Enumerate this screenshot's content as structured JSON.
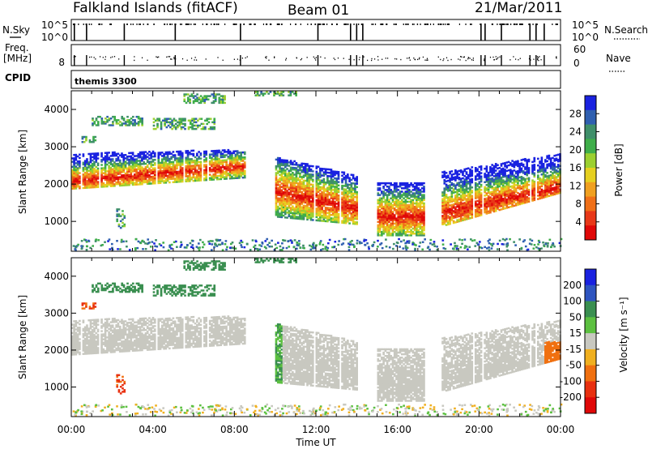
{
  "header": {
    "station": "Falkland Islands (fitACF)",
    "beam": "Beam 01",
    "date": "21/Mar/2011"
  },
  "strips": {
    "nsky_label": "N.Sky",
    "nsky_ticks": [
      "10^5",
      "10^0"
    ],
    "nsearch_label": "N.Search",
    "nsearch_ticks": [
      "10^5",
      "10^0"
    ],
    "freq_label": "Freq.",
    "freq_unit": "[MHz]",
    "freq_tick": "8",
    "nave_label": "Nave",
    "nave_ticks": [
      "60",
      "0"
    ],
    "cpid_label": "CPID",
    "cpid_value": "themis 3300"
  },
  "chart_data": [
    {
      "type": "heatmap",
      "parameter": "Power",
      "xlabel": "",
      "ylabel": "Slant Range [km]",
      "xlim": [
        "00:00",
        "24:00"
      ],
      "ylim": [
        200,
        4500
      ],
      "y_ticks": [
        1000,
        2000,
        3000,
        4000
      ],
      "colorbar": {
        "label": "Power [dB]",
        "ticks": [
          4,
          8,
          12,
          16,
          20,
          24,
          28
        ],
        "colors": [
          "#1a22e0",
          "#2f5fb0",
          "#3f8f6a",
          "#3fae4a",
          "#9cd030",
          "#e6d020",
          "#f0a020",
          "#f07018",
          "#e83818",
          "#e00808"
        ]
      },
      "echo_regions": [
        {
          "t_start": "00:00",
          "t_end": "08:30",
          "range_low_km": 1900,
          "range_high_km": 2900,
          "peak_range_km": 2300
        },
        {
          "t_start": "10:00",
          "t_end": "14:00",
          "range_low_km": 900,
          "range_high_km": 2700,
          "peak_range_km": 1500
        },
        {
          "t_start": "15:00",
          "t_end": "17:20",
          "range_low_km": 600,
          "range_high_km": 2000,
          "peak_range_km": 1100
        },
        {
          "t_start": "18:10",
          "t_end": "24:00",
          "range_low_km": 700,
          "range_high_km": 2800,
          "peak_range_km": 1500
        }
      ]
    },
    {
      "type": "heatmap",
      "parameter": "Velocity",
      "xlabel": "Time UT",
      "ylabel": "Slant Range [km]",
      "xlim": [
        "00:00",
        "24:00"
      ],
      "ylim": [
        200,
        4500
      ],
      "x_ticks": [
        "00:00",
        "04:00",
        "08:00",
        "12:00",
        "16:00",
        "20:00",
        "00:00"
      ],
      "y_ticks": [
        1000,
        2000,
        3000,
        4000
      ],
      "colorbar": {
        "label": "Velocity [m s⁻¹]",
        "ticks": [
          200,
          100,
          50,
          15,
          -15,
          -50,
          -100,
          -200
        ],
        "colors": [
          "#1a22e0",
          "#2f55c0",
          "#3a8f50",
          "#5cc040",
          "#c8c8c0",
          "#f0b020",
          "#f07010",
          "#e83010",
          "#e00808"
        ]
      }
    }
  ]
}
